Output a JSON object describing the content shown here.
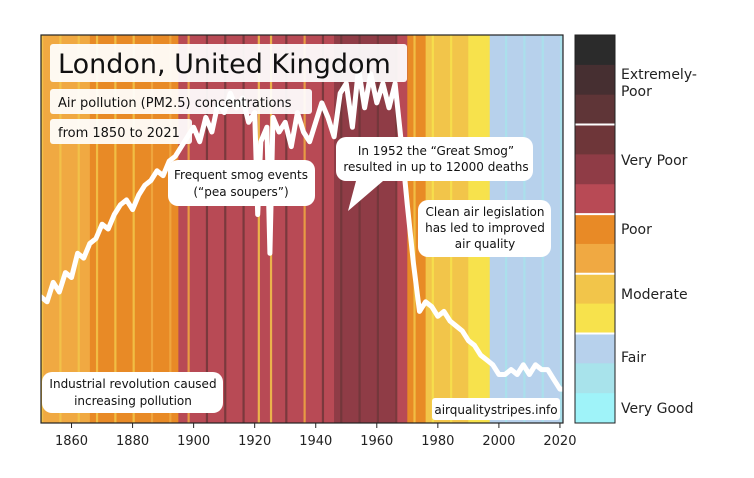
{
  "chart_data": {
    "type": "heatmap",
    "title": "London, United Kingdom",
    "subtitle_lines": [
      "Air pollution (PM2.5) concentrations",
      "from 1850 to 2021"
    ],
    "source": "airqualitystripes.info",
    "x_range": [
      1850,
      2021
    ],
    "x_ticks": [
      1860,
      1880,
      1900,
      1920,
      1940,
      1960,
      1980,
      2000,
      2020
    ],
    "y_range": [
      0,
      80
    ],
    "grid": false,
    "legend_position": "right",
    "legend": {
      "title": "",
      "categories": [
        "Extremely-Poor",
        "Very Poor",
        "Poor",
        "Moderate",
        "Fair",
        "Very Good"
      ],
      "colors": [
        "#2b2b2b",
        "#462f31",
        "#5f3537",
        "#6e3639",
        "#8f3c46",
        "#b84a55",
        "#e88a26",
        "#f0a942",
        "#f2c54a",
        "#f7e24c",
        "#b7d1ec",
        "#a8e3eb",
        "#9ff3f9"
      ]
    },
    "stripes": [
      {
        "from": 1850,
        "to": 1866,
        "level": "Poor-light"
      },
      {
        "from": 1866,
        "to": 1895,
        "level": "Poor"
      },
      {
        "from": 1895,
        "to": 1946,
        "level": "Very Poor-light"
      },
      {
        "from": 1946,
        "to": 1966,
        "level": "Very Poor"
      },
      {
        "from": 1966,
        "to": 1970,
        "level": "Very Poor-light"
      },
      {
        "from": 1970,
        "to": 1976,
        "level": "Poor"
      },
      {
        "from": 1976,
        "to": 1990,
        "level": "Moderate"
      },
      {
        "from": 1990,
        "to": 1997,
        "level": "Moderate-light"
      },
      {
        "from": 1997,
        "to": 2021,
        "level": "Fair"
      }
    ],
    "series": [
      {
        "x": [
          1850,
          1852,
          1854,
          1856,
          1858,
          1860,
          1862,
          1864,
          1866,
          1868,
          1870,
          1872,
          1874,
          1876,
          1878,
          1880,
          1882,
          1884,
          1886,
          1888,
          1890,
          1892,
          1894,
          1896,
          1898,
          1900,
          1902,
          1904,
          1906,
          1908,
          1910,
          1912,
          1914,
          1916,
          1918,
          1920,
          1921,
          1922,
          1924,
          1925,
          1926,
          1928,
          1930,
          1932,
          1934,
          1936,
          1938,
          1940,
          1942,
          1944,
          1946,
          1948,
          1950,
          1952,
          1954,
          1956,
          1958,
          1960,
          1962,
          1964,
          1966,
          1968,
          1970,
          1972,
          1974,
          1976,
          1978,
          1980,
          1982,
          1984,
          1986,
          1988,
          1990,
          1992,
          1994,
          1996,
          1998,
          2000,
          2002,
          2004,
          2006,
          2008,
          2010,
          2012,
          2014,
          2016,
          2018,
          2020,
          2021
        ],
        "values": [
          26,
          25,
          29,
          27,
          31,
          30,
          35,
          34,
          37,
          38,
          41,
          40,
          43,
          45,
          46,
          44,
          47,
          49,
          50,
          52,
          51,
          54,
          55,
          57,
          59,
          61,
          58,
          63,
          60,
          66,
          64,
          68,
          65,
          67,
          62,
          64,
          43,
          58,
          61,
          35,
          63,
          60,
          62,
          57,
          64,
          60,
          58,
          62,
          66,
          63,
          59,
          68,
          70,
          61,
          73,
          65,
          72,
          66,
          70,
          65,
          70,
          58,
          45,
          33,
          23,
          25,
          24,
          22,
          23,
          21,
          20,
          19,
          17,
          16,
          14,
          13,
          12,
          10,
          10,
          11,
          10,
          12,
          10,
          12,
          11,
          11,
          9,
          7,
          7
        ]
      }
    ],
    "annotations": [
      {
        "lines": [
          "Frequent smog events",
          "(“pea soupers”)"
        ],
        "x": 1916
      },
      {
        "lines": [
          "In 1952 the “Great Smog”",
          "resulted in up to 12000 deaths"
        ],
        "x": 1952
      },
      {
        "lines": [
          "Clean air legislation",
          "has led to improved",
          "air quality"
        ],
        "x": 1994
      },
      {
        "lines": [
          "Industrial revolution caused",
          "increasing pollution"
        ],
        "x": 1875
      }
    ]
  }
}
